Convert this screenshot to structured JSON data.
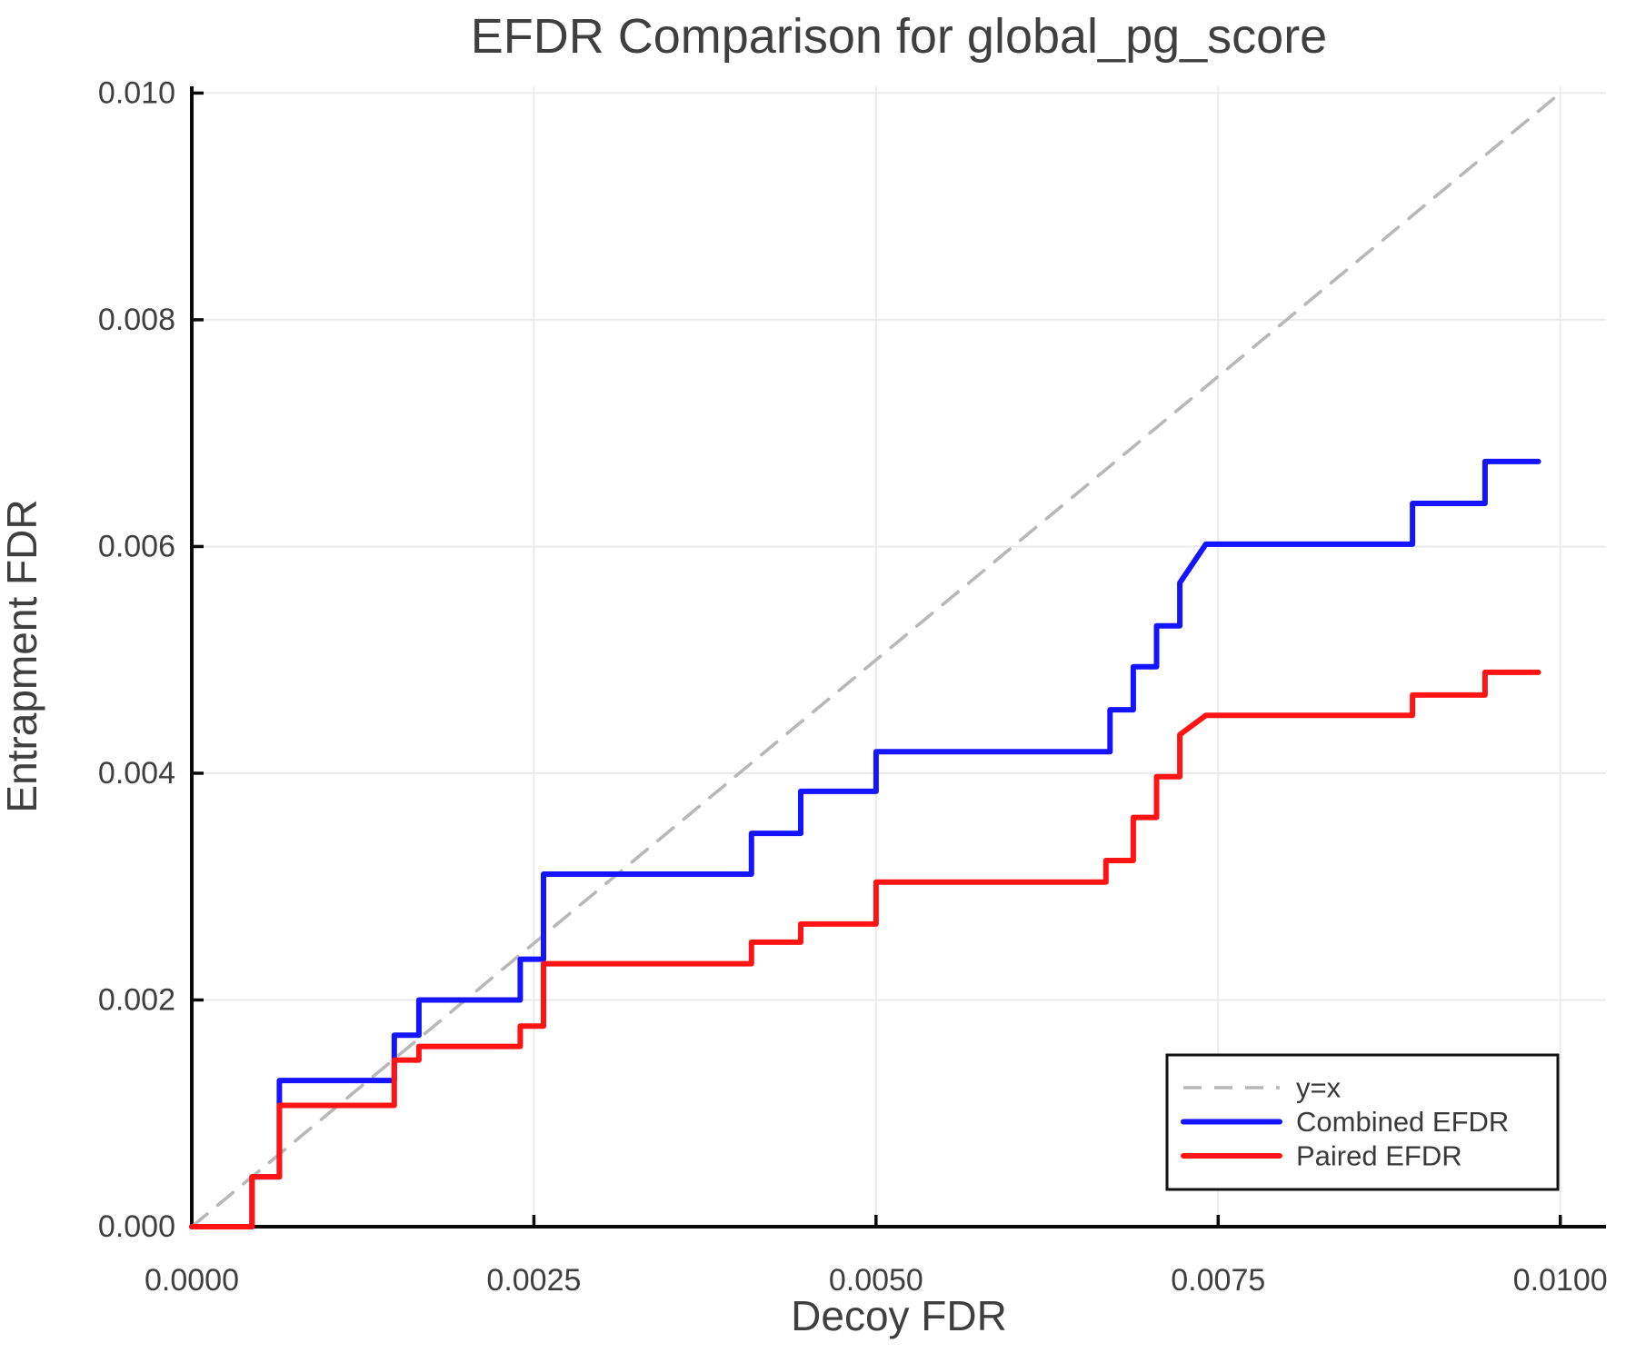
{
  "title": "EFDR Comparison for global_pg_score",
  "axes": {
    "xlabel": "Decoy FDR",
    "ylabel": "Entrapment FDR",
    "x_ticks": [
      {
        "value": 0.0,
        "label": "0.0000"
      },
      {
        "value": 0.0025,
        "label": "0.0025"
      },
      {
        "value": 0.005,
        "label": "0.0050"
      },
      {
        "value": 0.0075,
        "label": "0.0075"
      },
      {
        "value": 0.01,
        "label": "0.0100"
      }
    ],
    "y_ticks": [
      {
        "value": 0.0,
        "label": "0.000"
      },
      {
        "value": 0.002,
        "label": "0.002"
      },
      {
        "value": 0.004,
        "label": "0.004"
      },
      {
        "value": 0.006,
        "label": "0.006"
      },
      {
        "value": 0.008,
        "label": "0.008"
      },
      {
        "value": 0.01,
        "label": "0.010"
      }
    ]
  },
  "colors": {
    "combined": "#1414ff",
    "paired": "#ff1414",
    "identity": "#b8b8b8",
    "grid": "#ebebeb",
    "spine": "#0a0a0a",
    "text": "#3f3f3f",
    "legend_border": "#111111",
    "background": "#ffffff"
  },
  "legend": {
    "entries": [
      {
        "label": "y=x",
        "series": "identity"
      },
      {
        "label": "Combined EFDR",
        "series": "combined"
      },
      {
        "label": "Paired EFDR",
        "series": "paired"
      }
    ]
  },
  "chart_data": {
    "type": "line",
    "title": "EFDR Comparison for global_pg_score",
    "xlabel": "Decoy FDR",
    "ylabel": "Entrapment FDR",
    "xlim": [
      0.0,
      0.0103
    ],
    "ylim": [
      0.0,
      0.01006
    ],
    "grid": true,
    "legend_position": "lower right",
    "series": [
      {
        "name": "y=x",
        "style": "dashed",
        "color": "#b8b8b8",
        "width": 3.6,
        "dash": [
          22,
          15
        ],
        "points": [
          [
            0.0,
            0.0
          ],
          [
            0.01,
            0.01
          ]
        ]
      },
      {
        "name": "Combined EFDR",
        "style": "solid",
        "color": "#1414ff",
        "width": 6,
        "dash": null,
        "points": [
          [
            0.0,
            0.0
          ],
          [
            0.00044,
            0.0
          ],
          [
            0.00044,
            0.00044
          ],
          [
            0.00064,
            0.00044
          ],
          [
            0.00064,
            0.00129
          ],
          [
            0.00148,
            0.00129
          ],
          [
            0.00148,
            0.00169
          ],
          [
            0.00166,
            0.00169
          ],
          [
            0.00166,
            0.002
          ],
          [
            0.0024,
            0.002
          ],
          [
            0.0024,
            0.00236
          ],
          [
            0.00257,
            0.00236
          ],
          [
            0.00257,
            0.00311
          ],
          [
            0.00409,
            0.00311
          ],
          [
            0.00409,
            0.00347
          ],
          [
            0.00445,
            0.00347
          ],
          [
            0.00445,
            0.00384
          ],
          [
            0.005,
            0.00384
          ],
          [
            0.005,
            0.00419
          ],
          [
            0.00671,
            0.00419
          ],
          [
            0.00671,
            0.00456
          ],
          [
            0.00688,
            0.00456
          ],
          [
            0.00688,
            0.00494
          ],
          [
            0.00705,
            0.00494
          ],
          [
            0.00705,
            0.0053
          ],
          [
            0.00722,
            0.0053
          ],
          [
            0.00722,
            0.00568
          ],
          [
            0.00741,
            0.00602
          ],
          [
            0.00892,
            0.00602
          ],
          [
            0.00892,
            0.00638
          ],
          [
            0.00945,
            0.00638
          ],
          [
            0.00945,
            0.00675
          ],
          [
            0.00984,
            0.00675
          ]
        ]
      },
      {
        "name": "Paired EFDR",
        "style": "solid",
        "color": "#ff1414",
        "width": 6,
        "dash": null,
        "points": [
          [
            0.0,
            0.0
          ],
          [
            0.00044,
            0.0
          ],
          [
            0.00044,
            0.00044
          ],
          [
            0.00064,
            0.00044
          ],
          [
            0.00064,
            0.00107
          ],
          [
            0.00148,
            0.00107
          ],
          [
            0.00148,
            0.00147
          ],
          [
            0.00166,
            0.00147
          ],
          [
            0.00166,
            0.00159
          ],
          [
            0.0024,
            0.00159
          ],
          [
            0.0024,
            0.00177
          ],
          [
            0.00257,
            0.00177
          ],
          [
            0.00257,
            0.00232
          ],
          [
            0.00409,
            0.00232
          ],
          [
            0.00409,
            0.00251
          ],
          [
            0.00445,
            0.00251
          ],
          [
            0.00445,
            0.00267
          ],
          [
            0.005,
            0.00267
          ],
          [
            0.005,
            0.00304
          ],
          [
            0.00668,
            0.00304
          ],
          [
            0.00668,
            0.00323
          ],
          [
            0.00688,
            0.00323
          ],
          [
            0.00688,
            0.00361
          ],
          [
            0.00705,
            0.00361
          ],
          [
            0.00705,
            0.00397
          ],
          [
            0.00722,
            0.00397
          ],
          [
            0.00722,
            0.00434
          ],
          [
            0.00741,
            0.00451
          ],
          [
            0.00892,
            0.00451
          ],
          [
            0.00892,
            0.00469
          ],
          [
            0.00945,
            0.00469
          ],
          [
            0.00945,
            0.00489
          ],
          [
            0.00984,
            0.00489
          ]
        ]
      }
    ]
  }
}
